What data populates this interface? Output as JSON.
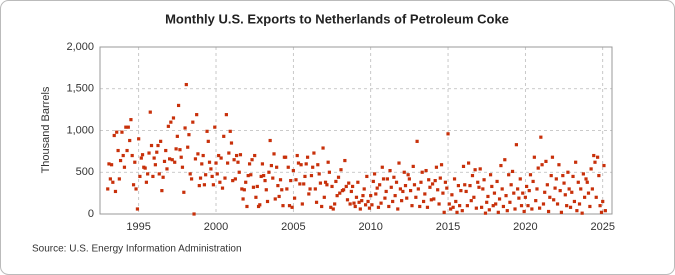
{
  "chart_data": {
    "type": "scatter",
    "title": "Monthly U.S. Exports to Netherlands of Petroleum Coke",
    "y_label": "Thousand Barrels",
    "source": "Source: U.S. Energy Information Administration",
    "color": "#c8300a",
    "grid": true,
    "xlim": [
      1992.5,
      2025.6
    ],
    "xticks": [
      1995,
      2000,
      2005,
      2010,
      2015,
      2020,
      2025
    ],
    "ylim": [
      0,
      2000
    ],
    "yticks": [
      0,
      500,
      {
        "value": 1000,
        "label": "1,000"
      },
      {
        "value": 1500,
        "label": "1,500"
      },
      {
        "value": 2000,
        "label": "2,000"
      }
    ],
    "x": [
      1993,
      1993.08,
      1993.17,
      1993.25,
      1993.33,
      1993.42,
      1993.5,
      1993.58,
      1993.67,
      1993.75,
      1993.83,
      1993.92,
      1994,
      1994.08,
      1994.17,
      1994.25,
      1994.33,
      1994.42,
      1994.5,
      1994.58,
      1994.67,
      1994.75,
      1994.83,
      1994.92,
      1995,
      1995.08,
      1995.17,
      1995.25,
      1995.33,
      1995.42,
      1995.5,
      1995.58,
      1995.67,
      1995.75,
      1995.83,
      1995.92,
      1996,
      1996.08,
      1996.17,
      1996.25,
      1996.33,
      1996.42,
      1996.5,
      1996.58,
      1996.67,
      1996.75,
      1996.83,
      1996.92,
      1997,
      1997.08,
      1997.17,
      1997.25,
      1997.33,
      1997.42,
      1997.5,
      1997.58,
      1997.67,
      1997.75,
      1997.83,
      1997.92,
      1998,
      1998.08,
      1998.17,
      1998.25,
      1998.33,
      1998.42,
      1998.5,
      1998.58,
      1998.67,
      1998.75,
      1998.83,
      1998.92,
      1999,
      1999.08,
      1999.17,
      1999.25,
      1999.33,
      1999.42,
      1999.5,
      1999.58,
      1999.67,
      1999.75,
      1999.83,
      1999.92,
      2000,
      2000.08,
      2000.17,
      2000.25,
      2000.33,
      2000.42,
      2000.5,
      2000.58,
      2000.67,
      2000.75,
      2000.83,
      2000.92,
      2001,
      2001.08,
      2001.17,
      2001.25,
      2001.33,
      2001.42,
      2001.5,
      2001.58,
      2001.67,
      2001.75,
      2001.83,
      2001.92,
      2002,
      2002.08,
      2002.17,
      2002.25,
      2002.33,
      2002.42,
      2002.5,
      2002.58,
      2002.67,
      2002.75,
      2002.83,
      2002.92,
      2003,
      2003.08,
      2003.17,
      2003.25,
      2003.33,
      2003.42,
      2003.5,
      2003.58,
      2003.67,
      2003.75,
      2003.83,
      2003.92,
      2004,
      2004.08,
      2004.17,
      2004.25,
      2004.33,
      2004.42,
      2004.5,
      2004.58,
      2004.67,
      2004.75,
      2004.83,
      2004.92,
      2005,
      2005.08,
      2005.17,
      2005.25,
      2005.33,
      2005.42,
      2005.5,
      2005.58,
      2005.67,
      2005.75,
      2005.83,
      2005.92,
      2006,
      2006.08,
      2006.17,
      2006.25,
      2006.33,
      2006.42,
      2006.5,
      2006.58,
      2006.67,
      2006.75,
      2006.83,
      2006.92,
      2007,
      2007.08,
      2007.17,
      2007.25,
      2007.33,
      2007.42,
      2007.5,
      2007.58,
      2007.67,
      2007.75,
      2007.83,
      2007.92,
      2008,
      2008.08,
      2008.17,
      2008.25,
      2008.33,
      2008.42,
      2008.5,
      2008.58,
      2008.67,
      2008.75,
      2008.83,
      2008.92,
      2009,
      2009.08,
      2009.17,
      2009.25,
      2009.33,
      2009.42,
      2009.5,
      2009.58,
      2009.67,
      2009.75,
      2009.83,
      2009.92,
      2010,
      2010.08,
      2010.17,
      2010.25,
      2010.33,
      2010.42,
      2010.5,
      2010.58,
      2010.67,
      2010.75,
      2010.83,
      2010.92,
      2011,
      2011.08,
      2011.17,
      2011.25,
      2011.33,
      2011.42,
      2011.5,
      2011.58,
      2011.67,
      2011.75,
      2011.83,
      2011.92,
      2012,
      2012.08,
      2012.17,
      2012.25,
      2012.33,
      2012.42,
      2012.5,
      2012.58,
      2012.67,
      2012.75,
      2012.83,
      2012.92,
      2013,
      2013.08,
      2013.17,
      2013.25,
      2013.33,
      2013.42,
      2013.5,
      2013.58,
      2013.67,
      2013.75,
      2013.83,
      2013.92,
      2014,
      2014.08,
      2014.17,
      2014.25,
      2014.33,
      2014.42,
      2014.5,
      2014.58,
      2014.67,
      2014.75,
      2014.83,
      2014.92,
      2015,
      2015.08,
      2015.17,
      2015.25,
      2015.33,
      2015.42,
      2015.5,
      2015.58,
      2015.67,
      2015.75,
      2015.83,
      2015.92,
      2016,
      2016.08,
      2016.17,
      2016.25,
      2016.33,
      2016.42,
      2016.5,
      2016.58,
      2016.67,
      2016.75,
      2016.83,
      2016.92,
      2017,
      2017.08,
      2017.17,
      2017.25,
      2017.33,
      2017.42,
      2017.5,
      2017.58,
      2017.67,
      2017.75,
      2017.83,
      2017.92,
      2018,
      2018.08,
      2018.17,
      2018.25,
      2018.33,
      2018.42,
      2018.5,
      2018.58,
      2018.67,
      2018.75,
      2018.83,
      2018.92,
      2019,
      2019.08,
      2019.17,
      2019.25,
      2019.33,
      2019.42,
      2019.5,
      2019.58,
      2019.67,
      2019.75,
      2019.83,
      2019.92,
      2020,
      2020.08,
      2020.17,
      2020.25,
      2020.33,
      2020.42,
      2020.5,
      2020.58,
      2020.67,
      2020.75,
      2020.83,
      2020.92,
      2021,
      2021.08,
      2021.17,
      2021.25,
      2021.33,
      2021.42,
      2021.5,
      2021.58,
      2021.67,
      2021.75,
      2021.83,
      2021.92,
      2022,
      2022.08,
      2022.17,
      2022.25,
      2022.33,
      2022.42,
      2022.5,
      2022.58,
      2022.67,
      2022.75,
      2022.83,
      2022.92,
      2023,
      2023.08,
      2023.17,
      2023.25,
      2023.33,
      2023.42,
      2023.5,
      2023.58,
      2023.67,
      2023.75,
      2023.83,
      2023.92,
      2024,
      2024.08,
      2024.17,
      2024.25,
      2024.33,
      2024.42,
      2024.5,
      2024.58,
      2024.67,
      2024.75,
      2024.83,
      2024.92,
      2025,
      2025.08,
      2025.17
    ],
    "values": [
      300,
      600,
      420,
      590,
      380,
      940,
      270,
      980,
      760,
      420,
      640,
      980,
      700,
      560,
      1040,
      760,
      1040,
      880,
      1130,
      700,
      350,
      620,
      300,
      60,
      900,
      450,
      670,
      710,
      560,
      550,
      380,
      480,
      730,
      1220,
      820,
      450,
      670,
      590,
      740,
      820,
      480,
      870,
      280,
      440,
      630,
      760,
      540,
      1050,
      660,
      1100,
      650,
      1150,
      620,
      780,
      930,
      1300,
      770,
      680,
      560,
      260,
      1030,
      1550,
      800,
      950,
      480,
      420,
      1100,
      0,
      660,
      1190,
      720,
      340,
      430,
      600,
      700,
      350,
      470,
      990,
      870,
      620,
      540,
      450,
      350,
      1040,
      610,
      480,
      700,
      380,
      670,
      310,
      930,
      430,
      1190,
      610,
      730,
      990,
      850,
      400,
      650,
      420,
      700,
      620,
      500,
      710,
      300,
      180,
      290,
      380,
      90,
      460,
      600,
      470,
      650,
      320,
      700,
      200,
      330,
      90,
      110,
      450,
      600,
      460,
      400,
      290,
      150,
      500,
      880,
      580,
      430,
      720,
      180,
      560,
      340,
      210,
      410,
      290,
      100,
      680,
      680,
      300,
      560,
      100,
      400,
      80,
      520,
      190,
      410,
      700,
      610,
      360,
      590,
      120,
      360,
      450,
      600,
      680,
      240,
      300,
      460,
      560,
      730,
      300,
      140,
      590,
      480,
      370,
      90,
      790,
      200,
      380,
      350,
      620,
      500,
      80,
      330,
      60,
      120,
      390,
      220,
      440,
      250,
      530,
      280,
      290,
      640,
      330,
      170,
      370,
      120,
      270,
      330,
      130,
      90,
      200,
      380,
      140,
      60,
      160,
      220,
      300,
      110,
      450,
      150,
      70,
      220,
      110,
      390,
      480,
      240,
      310,
      80,
      350,
      130,
      560,
      420,
      190,
      270,
      420,
      90,
      520,
      320,
      150,
      440,
      220,
      380,
      60,
      610,
      300,
      160,
      270,
      500,
      340,
      190,
      470,
      420,
      280,
      100,
      570,
      350,
      200,
      870,
      300,
      90,
      380,
      500,
      150,
      240,
      520,
      80,
      410,
      320,
      170,
      360,
      180,
      400,
      560,
      290,
      120,
      430,
      590,
      250,
      20,
      380,
      310,
      960,
      120,
      60,
      230,
      80,
      420,
      150,
      20,
      340,
      100,
      280,
      40,
      570,
      350,
      270,
      100,
      610,
      340,
      160,
      460,
      200,
      530,
      70,
      380,
      320,
      540,
      80,
      300,
      410,
      10,
      140,
      210,
      50,
      470,
      330,
      100,
      250,
      120,
      390,
      20,
      180,
      580,
      300,
      90,
      650,
      220,
      40,
      470,
      140,
      350,
      510,
      250,
      60,
      830,
      300,
      190,
      420,
      100,
      250,
      30,
      200,
      330,
      100,
      280,
      470,
      60,
      390,
      680,
      160,
      300,
      550,
      70,
      920,
      590,
      120,
      260,
      630,
      350,
      30,
      200,
      460,
      680,
      170,
      310,
      420,
      120,
      590,
      280,
      20,
      460,
      370,
      230,
      100,
      500,
      300,
      80,
      260,
      450,
      150,
      620,
      40,
      380,
      120,
      300,
      10,
      480,
      200,
      420,
      380,
      250,
      90,
      540,
      300,
      700,
      620,
      200,
      680,
      460,
      100,
      20,
      150,
      580,
      40
    ]
  }
}
